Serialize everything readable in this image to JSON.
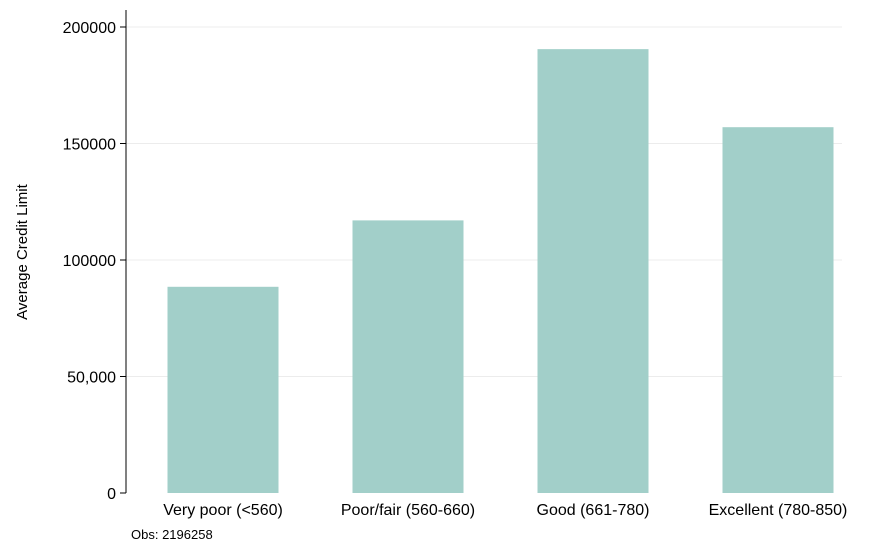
{
  "chart_data": {
    "type": "bar",
    "categories": [
      "Very poor (<560)",
      "Poor/fair (560-660)",
      "Good (661-780)",
      "Excellent (780-850)"
    ],
    "values": [
      88500,
      117000,
      190500,
      157000
    ],
    "ylabel": "Average Credit Limit",
    "xlabel": "",
    "ylim": [
      0,
      200000
    ],
    "yticks": [
      0,
      50000,
      100000,
      150000,
      200000
    ],
    "ytick_labels": [
      "0",
      "50,000",
      "100000",
      "150000",
      "200000"
    ],
    "grid": true,
    "legend": "none",
    "note": "Obs: 2196258",
    "colors": {
      "bar": "#a2cfc9",
      "grid": "#ececec",
      "axis": "#000000"
    }
  }
}
